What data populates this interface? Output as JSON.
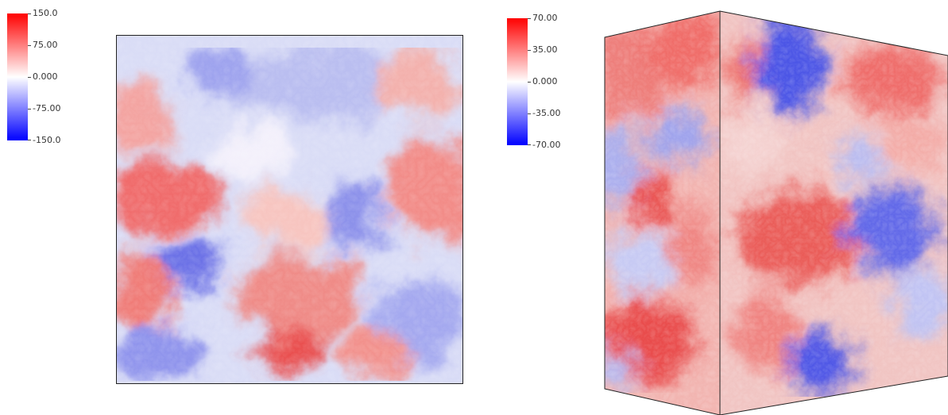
{
  "colorbar_left": {
    "labels": [
      "150.0",
      "75.00",
      "0.000",
      "-75.00",
      "-150.0"
    ],
    "colormap": [
      "#ff0000",
      "#ffffff",
      "#0000ff"
    ]
  },
  "colorbar_right": {
    "labels": [
      "70.00",
      "35.00",
      "0.000",
      "-35.00",
      "-70.00"
    ],
    "colormap": [
      "#ff0000",
      "#ffffff",
      "#0000ff"
    ]
  },
  "colors": {
    "positive": "#e8332e",
    "negative": "#2a32e6",
    "neutral": "#ffffff"
  }
}
